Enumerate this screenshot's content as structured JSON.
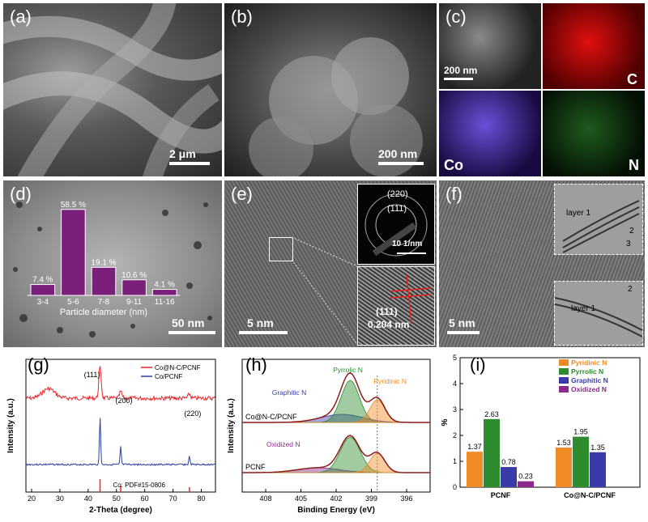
{
  "panels": {
    "a": {
      "label": "(a)",
      "scale": "2 μm"
    },
    "b": {
      "label": "(b)",
      "scale": "200 nm"
    },
    "c": {
      "label": "(c)",
      "scale": "200 nm",
      "maps": [
        "C",
        "Co",
        "N"
      ]
    },
    "d": {
      "label": "(d)",
      "scale": "50 nm"
    },
    "e": {
      "label": "(e)",
      "scale": "5 nm",
      "saed_rings": [
        "(220)",
        "(111)"
      ],
      "saed_scale": "10 1/nm",
      "inset_plane": "(111)",
      "inset_spacing": "0.204 nm"
    },
    "f": {
      "label": "(f)",
      "scale": "5 nm",
      "layers_top": [
        "layer 1",
        "2",
        "3"
      ],
      "layers_bottom": [
        "layer 1",
        "2"
      ]
    },
    "g": {
      "label": "(g)"
    },
    "h": {
      "label": "(h)"
    },
    "i": {
      "label": "(i)"
    }
  },
  "chart_data": [
    {
      "panel": "d",
      "type": "bar",
      "categories": [
        "3-4",
        "5-6",
        "7-8",
        "9-11",
        "11-16"
      ],
      "values": [
        7.4,
        58.5,
        19.1,
        10.6,
        4.1
      ],
      "value_labels": [
        "7.4 %",
        "58.5 %",
        "19.1 %",
        "10.6 %",
        "4.1 %"
      ],
      "xlabel": "Particle diameter (nm)",
      "ylim": [
        0,
        65
      ],
      "color": "#7a1f7a"
    },
    {
      "panel": "g",
      "type": "line",
      "xlabel": "2-Theta (degree)",
      "ylabel": "Intensity (a.u.)",
      "xlim": [
        18,
        85
      ],
      "xticks": [
        20,
        30,
        40,
        50,
        60,
        70,
        80
      ],
      "legend": "top-right",
      "series": [
        {
          "name": "Co@N-C/PCNF",
          "color": "#e8262a"
        },
        {
          "name": "Co/PCNF",
          "color": "#2b3fa0"
        }
      ],
      "peaks": [
        44.2,
        51.5,
        75.8
      ],
      "peak_labels": [
        "(111)",
        "(200)",
        "(220)"
      ],
      "reference": "Co: PDF#15-0806"
    },
    {
      "panel": "h",
      "type": "line",
      "xlabel": "Binding Energy (eV)",
      "ylabel": "Intensity (a.u.)",
      "xlim": [
        410,
        394
      ],
      "xticks": [
        408,
        405,
        402,
        399,
        396
      ],
      "samples": [
        "Co@N-C/PCNF",
        "PCNF"
      ],
      "components": [
        {
          "name": "Graphitic N",
          "color": "#3a3aa8"
        },
        {
          "name": "Pyrrolic N",
          "color": "#2e8b2e"
        },
        {
          "name": "Pyridinic N",
          "color": "#f08a24"
        },
        {
          "name": "Oxidized N",
          "color": "#8b2a8b"
        }
      ]
    },
    {
      "panel": "i",
      "type": "bar",
      "categories": [
        "PCNF",
        "Co@N-C/PCNF"
      ],
      "ylabel": "%",
      "ylim": [
        0,
        5
      ],
      "yticks": [
        0,
        1,
        2,
        3,
        4,
        5
      ],
      "legend": "top-right",
      "series": [
        {
          "name": "Pyridinic N",
          "color": "#f08a24",
          "values": [
            1.37,
            1.53
          ],
          "value_labels": [
            "1.37",
            "1.53"
          ]
        },
        {
          "name": "Pyrrolic N",
          "color": "#2e8b2e",
          "values": [
            2.63,
            1.95
          ],
          "value_labels": [
            "2.63",
            "1.95"
          ]
        },
        {
          "name": "Graphitic N",
          "color": "#3a3aa8",
          "values": [
            0.78,
            1.35
          ],
          "value_labels": [
            "0.78",
            "1.35"
          ]
        },
        {
          "name": "Oxidized N",
          "color": "#8b2a8b",
          "values": [
            0.23,
            null
          ],
          "value_labels": [
            "0.23",
            ""
          ]
        }
      ]
    }
  ]
}
